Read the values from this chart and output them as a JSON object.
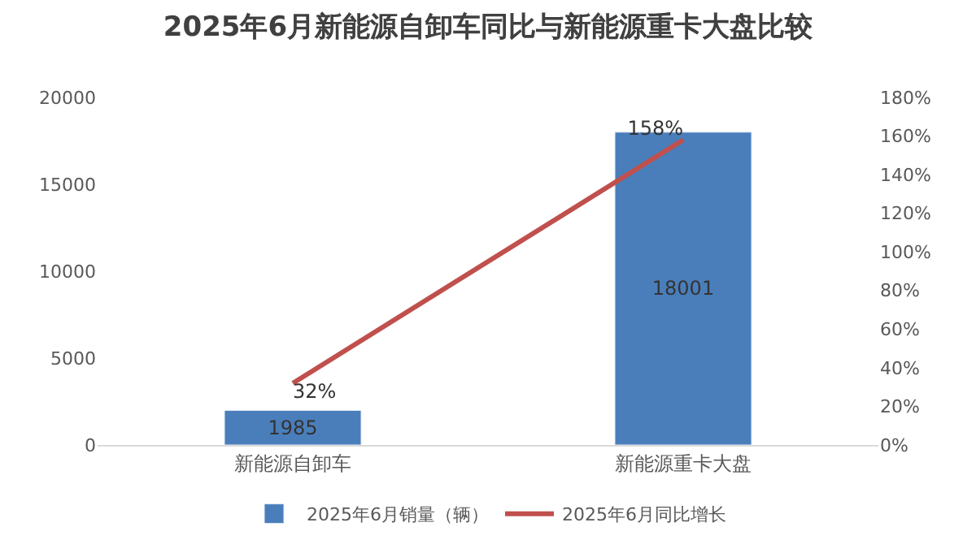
{
  "chart_data": {
    "type": "bar",
    "title": "2025年6月新能源自卸车同比与新能源重卡大盘比较",
    "categories": [
      "新能源自卸车",
      "新能源重卡大盘"
    ],
    "series": [
      {
        "name": "2025年6月销量（辆）",
        "color": "#4a7ebb",
        "values": [
          1985,
          18001
        ],
        "value_labels": [
          "1985",
          "18001"
        ]
      },
      {
        "name": "2025年6月同比增长",
        "type": "line",
        "axis": "y2",
        "color": "#c0504d",
        "values": [
          32,
          158
        ],
        "value_labels": [
          "32%",
          "158%"
        ]
      }
    ],
    "ylim": [
      0,
      20000
    ],
    "yticks": [
      0,
      5000,
      10000,
      15000,
      20000
    ],
    "y2lim": [
      0,
      180
    ],
    "y2ticks": [
      {
        "value": 0,
        "label": "0%"
      },
      {
        "value": 20,
        "label": "20%"
      },
      {
        "value": 40,
        "label": "40%"
      },
      {
        "value": 60,
        "label": "60%"
      },
      {
        "value": 80,
        "label": "80%"
      },
      {
        "value": 100,
        "label": "100%"
      },
      {
        "value": 120,
        "label": "120%"
      },
      {
        "value": 140,
        "label": "140%"
      },
      {
        "value": 160,
        "label": "160%"
      },
      {
        "value": 180,
        "label": "180%"
      }
    ],
    "legend": "bottom",
    "grid": false
  }
}
